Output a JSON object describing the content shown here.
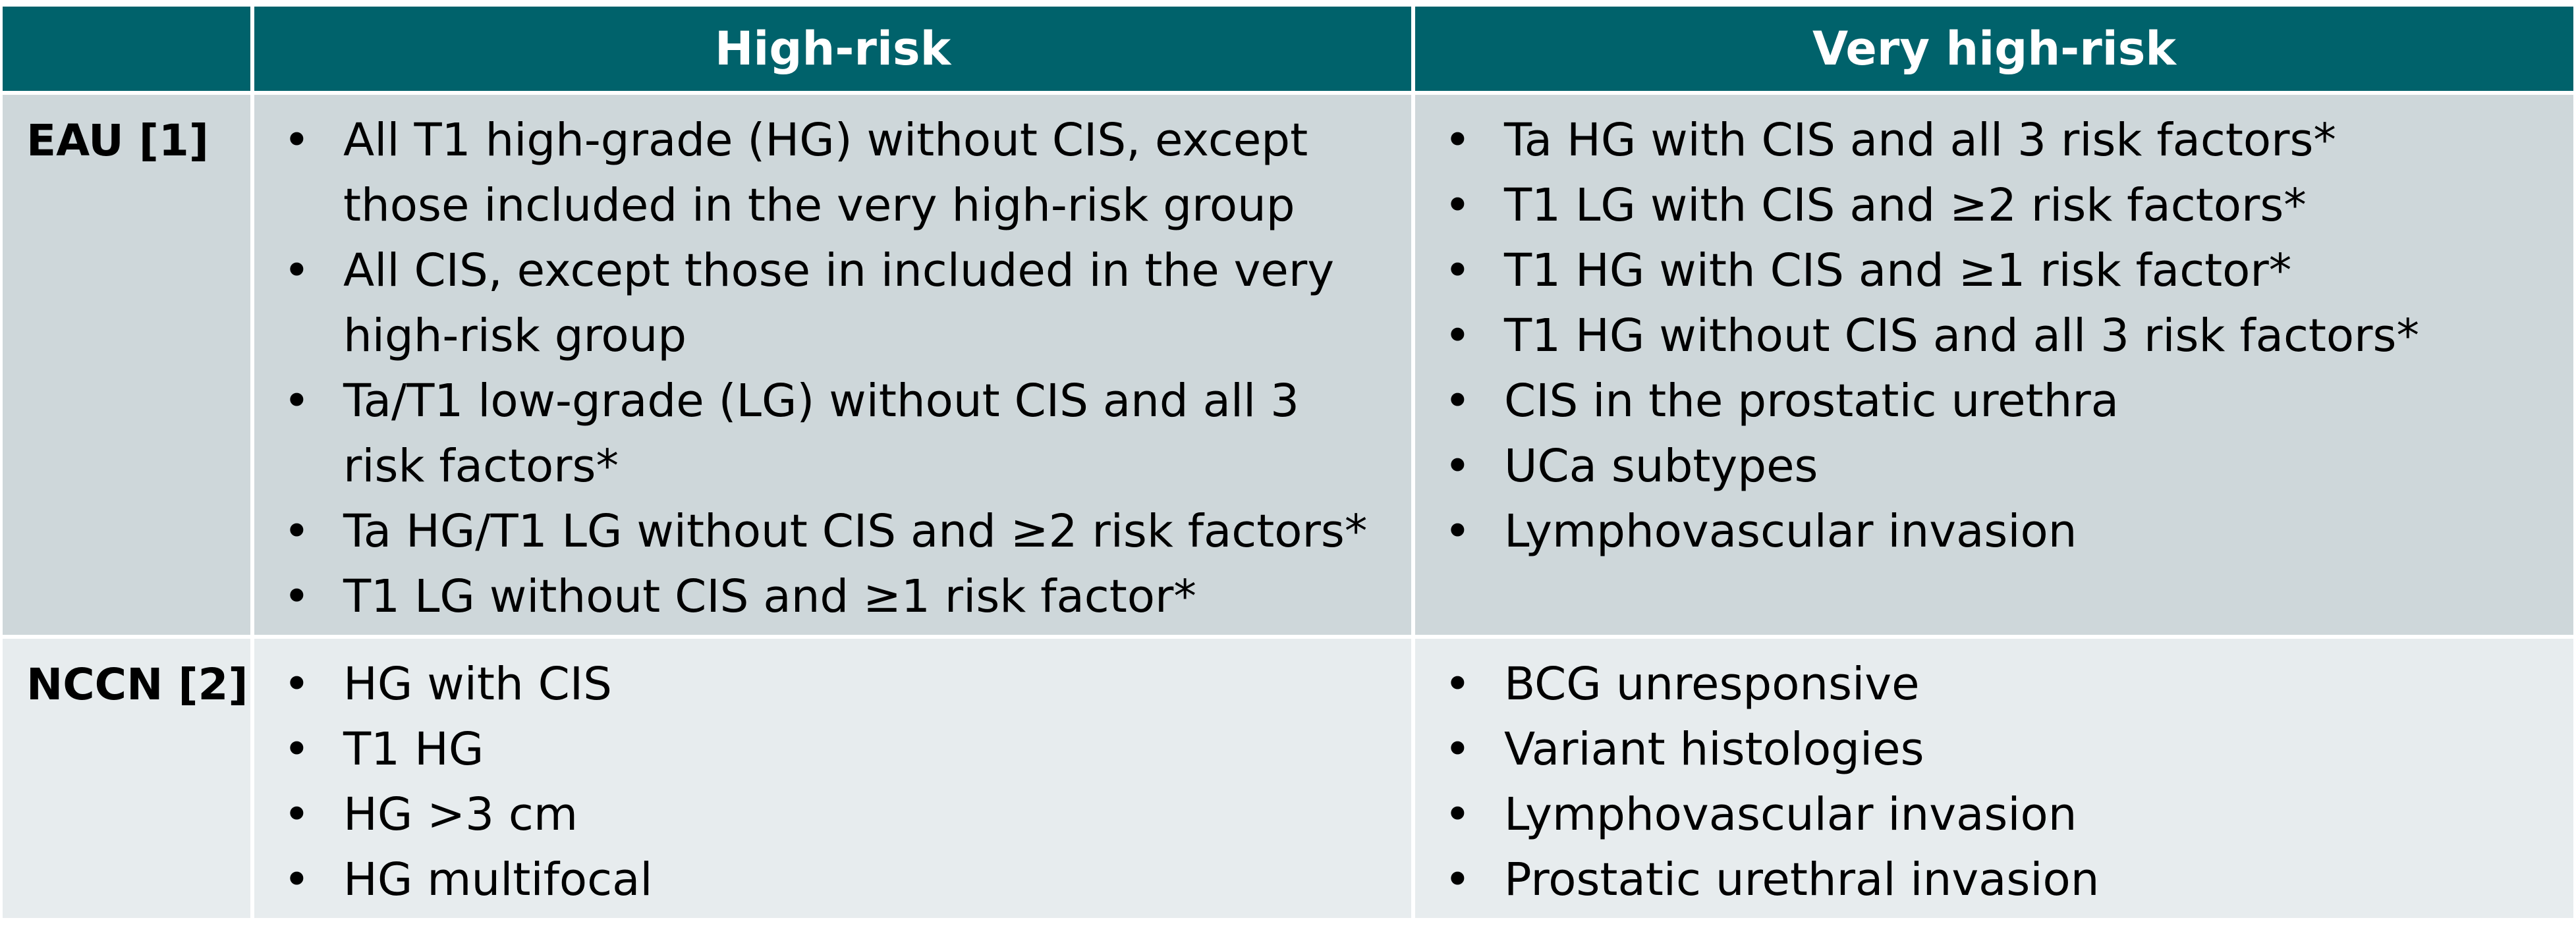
{
  "header": {
    "corner": "",
    "col_high": "High-risk",
    "col_very_high": "Very high-risk"
  },
  "colors": {
    "header_bg": "#00626b",
    "row1_bg": "#ced7da",
    "row2_bg": "#e7ecee"
  },
  "rows": [
    {
      "label": "EAU [1]",
      "high_risk": [
        "All T1 high-grade (HG) without CIS, except those included in the very high-risk group",
        "All CIS, except those in included in the very high-risk group",
        "Ta/T1 low-grade (LG) without CIS and all 3 risk factors*",
        "Ta HG/T1 LG without CIS and ≥2 risk factors*",
        "T1 LG without CIS and ≥1 risk factor*"
      ],
      "very_high_risk": [
        "Ta HG with CIS and all 3 risk factors*",
        "T1 LG with CIS and ≥2 risk factors*",
        "T1 HG with CIS and ≥1 risk factor*",
        "T1 HG without CIS and all 3 risk factors*",
        "CIS in the prostatic urethra",
        "UCa subtypes",
        "Lymphovascular invasion"
      ]
    },
    {
      "label": "NCCN [2]",
      "high_risk": [
        "HG with CIS",
        "T1 HG",
        "HG >3 cm",
        "HG multifocal"
      ],
      "very_high_risk": [
        "BCG unresponsive",
        "Variant histologies",
        "Lymphovascular invasion",
        "Prostatic urethral invasion"
      ]
    }
  ]
}
